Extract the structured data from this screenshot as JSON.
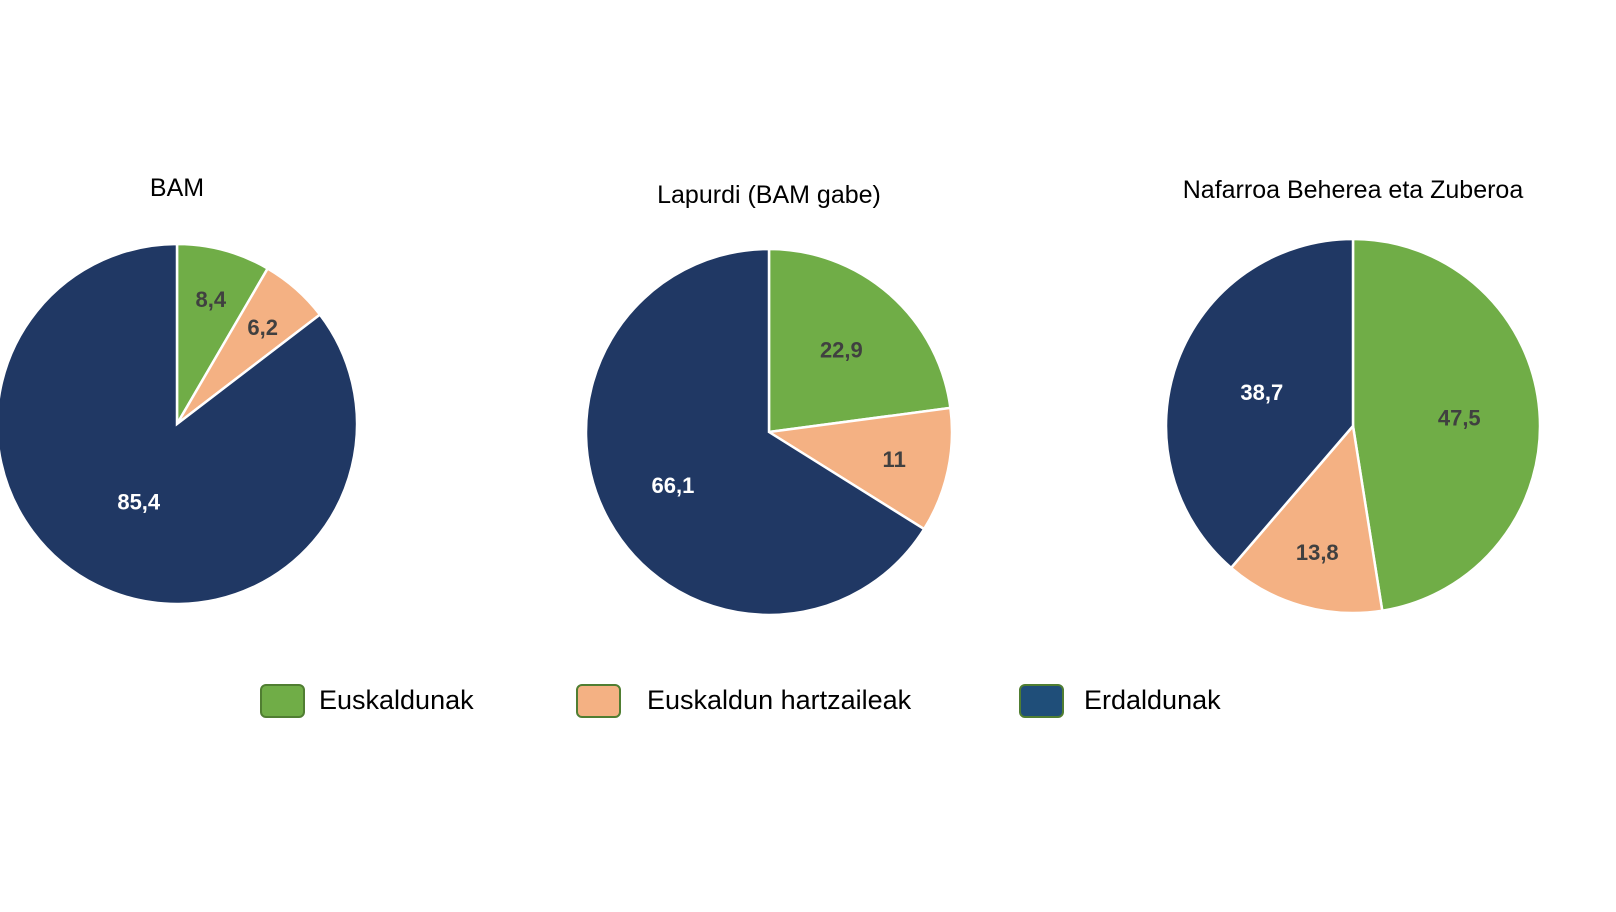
{
  "chart_data": [
    {
      "type": "pie",
      "title": "BAM",
      "categories": [
        "Euskaldunak",
        "Euskaldun hartzaileak",
        "Erdaldunak"
      ],
      "values": [
        8.4,
        6.2,
        85.4
      ],
      "labels": [
        "8,4",
        "6,2",
        "85,4"
      ]
    },
    {
      "type": "pie",
      "title": "Lapurdi (BAM gabe)",
      "categories": [
        "Euskaldunak",
        "Euskaldun hartzaileak",
        "Erdaldunak"
      ],
      "values": [
        22.9,
        11,
        66.1
      ],
      "labels": [
        "22,9",
        "11",
        "66,1"
      ]
    },
    {
      "type": "pie",
      "title": "Nafarroa Beherea eta Zuberoa",
      "categories": [
        "Euskaldunak",
        "Euskaldun hartzaileak",
        "Erdaldunak"
      ],
      "values": [
        47.5,
        13.8,
        38.7
      ],
      "labels": [
        "47,5",
        "13,8",
        "38,7"
      ]
    }
  ],
  "legend": {
    "placement": "bottom",
    "items": [
      {
        "label": "Euskaldunak",
        "color": "#70AD47"
      },
      {
        "label": "Euskaldun hartzaileak",
        "color": "#F4B183"
      },
      {
        "label": "Erdaldunak",
        "color": "#1F4E79"
      }
    ]
  },
  "colors": {
    "slices": [
      "#70AD47",
      "#F4B183",
      "#203864"
    ],
    "label_dark": "#404040",
    "label_light": "#FFFFFF"
  }
}
